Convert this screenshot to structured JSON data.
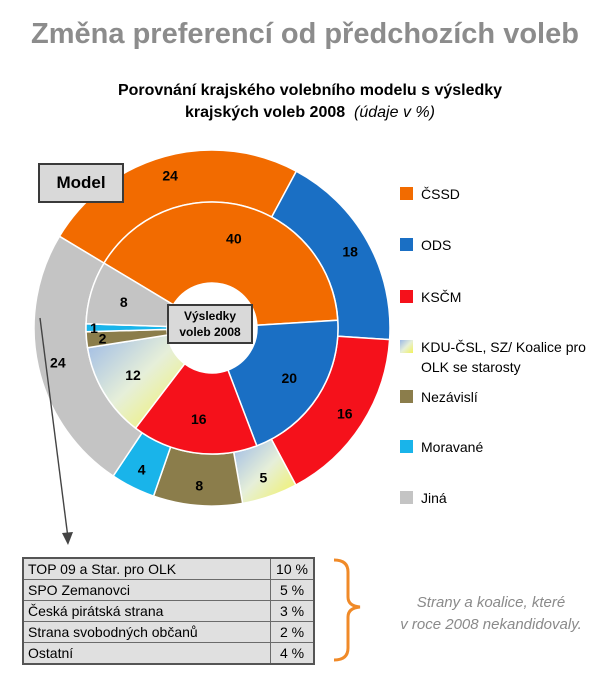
{
  "title": "Změna preferencí od předchozích voleb",
  "subtitle_line1": "Porovnání krajského volebního modelu s výsledky",
  "subtitle_line2": "krajských voleb 2008",
  "subtitle_note": "(údaje v %)",
  "model_label": "Model",
  "results_label_line1": "Výsledky",
  "results_label_line2": "voleb 2008",
  "colors": {
    "cssd": "#f26b00",
    "ods": "#1a6fc4",
    "kscm": "#f5111b",
    "kdu": "#c8d8b8",
    "nezavisli": "#8b7d4b",
    "moravane": "#19b4ea",
    "jina": "#c4c4c4"
  },
  "chart_data": {
    "type": "donut",
    "categories": [
      "ČSSD",
      "ODS",
      "KSČM",
      "KDU-ČSL, SZ/ Koalice pro OLK se starosty",
      "Nezávislí",
      "Moravané",
      "Jiná"
    ],
    "series": [
      {
        "name": "Model",
        "values": [
          24,
          18,
          16,
          5,
          8,
          4,
          24
        ]
      },
      {
        "name": "Výsledky voleb 2008",
        "values": [
          40,
          20,
          16,
          12,
          2,
          1,
          8
        ]
      }
    ]
  },
  "legend": [
    {
      "label": "ČSSD",
      "color": "#f26b00"
    },
    {
      "label": "ODS",
      "color": "#1a6fc4"
    },
    {
      "label": "KSČM",
      "color": "#f5111b"
    },
    {
      "label": "KDU-ČSL, SZ/ Koalice pro OLK se starosty",
      "color": "#c8d8b8"
    },
    {
      "label": "Nezávislí",
      "color": "#8b7d4b"
    },
    {
      "label": "Moravané",
      "color": "#19b4ea"
    },
    {
      "label": "Jiná",
      "color": "#c4c4c4"
    }
  ],
  "others_table": [
    {
      "name": "TOP 09 a Star. pro OLK",
      "value": "10 %"
    },
    {
      "name": "SPO Zemanovci",
      "value": "5 %"
    },
    {
      "name": "Česká pirátská strana",
      "value": "3 %"
    },
    {
      "name": "Strana svobodných občanů",
      "value": "2 %"
    },
    {
      "name": "Ostatní",
      "value": "4 %"
    }
  ],
  "note_line1": "Strany a koalice, které",
  "note_line2": "v roce 2008 nekandidovaly."
}
